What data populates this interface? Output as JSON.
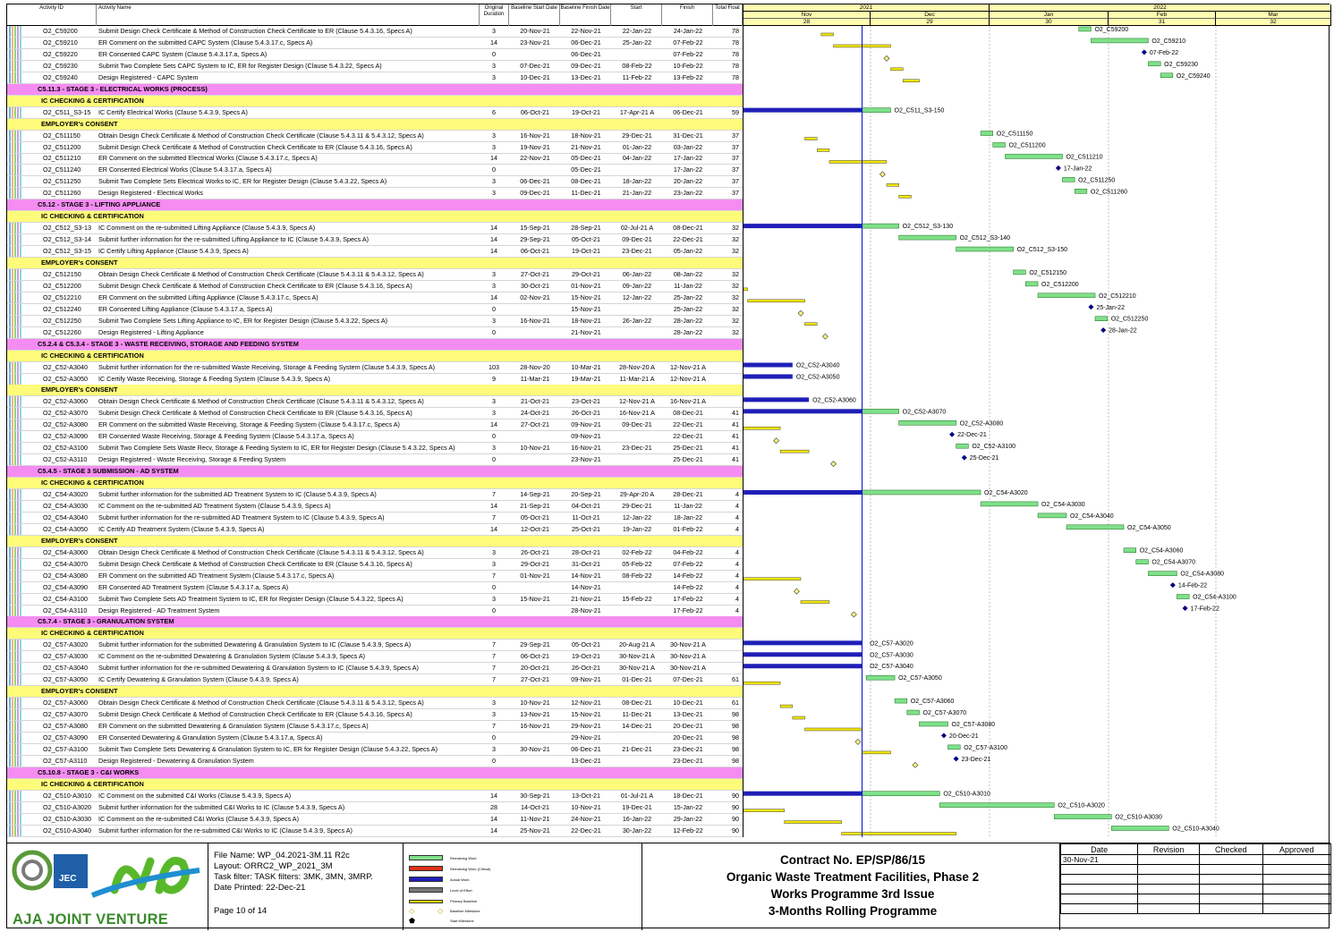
{
  "header": {
    "activity_id": "Activity ID",
    "activity_name": "Activity Name",
    "orig_duration": "Original Duration",
    "baseline_start": "Baseline Start Date",
    "baseline_finish": "Baseline Finish Date",
    "start": "Start",
    "finish": "Finish",
    "total_float": "Total Float"
  },
  "timescale": {
    "years": [
      "2021",
      "2022"
    ],
    "months": [
      "Nov",
      "Dec",
      "Jan",
      "Feb",
      "Mar"
    ],
    "weeks": [
      "28",
      "29",
      "30",
      "31",
      "32"
    ],
    "data_date": "30-Nov-21"
  },
  "rows": [
    {
      "t": "a",
      "id": "O2_C59200",
      "name": "Submit Design Check Certificate & Method of Construction Check Certificate to ER (Clause 5.4.3.16, Specs A)",
      "dur": "3",
      "bs": "20-Nov-21",
      "bf": "22-Nov-21",
      "st": "22-Jan-22",
      "fi": "24-Jan-22",
      "tf": "78",
      "label": "O2_C59200"
    },
    {
      "t": "a",
      "id": "O2_C59210",
      "name": "ER Comment on the submitted CAPC System (Clause 5.4.3.17.c, Specs A)",
      "dur": "14",
      "bs": "23-Nov-21",
      "bf": "06-Dec-21",
      "st": "25-Jan-22",
      "fi": "07-Feb-22",
      "tf": "78",
      "label": "O2_C59210"
    },
    {
      "t": "a",
      "id": "O2_C59220",
      "name": "ER Consented CAPC System (Clause 5.4.3.17.a, Specs A)",
      "dur": "0",
      "bs": "",
      "bf": "06-Dec-21",
      "st": "",
      "fi": "07-Feb-22",
      "tf": "78",
      "label": "07-Feb-22"
    },
    {
      "t": "a",
      "id": "O2_C59230",
      "name": "Submit Two Complete Sets CAPC System to IC, ER for Register Design (Clause 5.4.3.22, Specs A)",
      "dur": "3",
      "bs": "07-Dec-21",
      "bf": "09-Dec-21",
      "st": "08-Feb-22",
      "fi": "10-Feb-22",
      "tf": "78",
      "label": "O2_C59230"
    },
    {
      "t": "a",
      "id": "O2_C59240",
      "name": "Design Registered - CAPC System",
      "dur": "3",
      "bs": "10-Dec-21",
      "bf": "13-Dec-21",
      "st": "11-Feb-22",
      "fi": "13-Feb-22",
      "tf": "78",
      "label": "O2_C59240"
    },
    {
      "t": "s",
      "name": "C5.11.3 - STAGE 3 - ELECTRICAL WORKS (PROCESS)"
    },
    {
      "t": "h",
      "name": "IC CHECKING & CERTIFICATION"
    },
    {
      "t": "a",
      "id": "O2_C511_S3-15",
      "name": "IC Certify Electrical Works (Clause 5.4.3.9, Specs A)",
      "dur": "6",
      "bs": "06-Oct-21",
      "bf": "19-Oct-21",
      "st": "17-Apr-21 A",
      "fi": "06-Dec-21",
      "tf": "59",
      "label": "O2_C511_S3-150"
    },
    {
      "t": "h",
      "name": "EMPLOYER's CONSENT"
    },
    {
      "t": "a",
      "id": "O2_C511150",
      "name": "Obtain Design Check Certificate & Method of Construction Check Certificate (Clause 5.4.3.11 & 5.4.3.12, Specs A)",
      "dur": "3",
      "bs": "16-Nov-21",
      "bf": "18-Nov-21",
      "st": "29-Dec-21",
      "fi": "31-Dec-21",
      "tf": "37",
      "label": "O2_C511150"
    },
    {
      "t": "a",
      "id": "O2_C511200",
      "name": "Submit Design Check Certificate & Method of Construction Check Certificate to ER (Clause 5.4.3.16, Specs A)",
      "dur": "3",
      "bs": "19-Nov-21",
      "bf": "21-Nov-21",
      "st": "01-Jan-22",
      "fi": "03-Jan-22",
      "tf": "37",
      "label": "O2_C511200"
    },
    {
      "t": "a",
      "id": "O2_C511210",
      "name": "ER Comment on the submitted Electrical Works (Clause 5.4.3.17.c, Specs A)",
      "dur": "14",
      "bs": "22-Nov-21",
      "bf": "05-Dec-21",
      "st": "04-Jan-22",
      "fi": "17-Jan-22",
      "tf": "37",
      "label": "O2_C511210"
    },
    {
      "t": "a",
      "id": "O2_C511240",
      "name": "ER Consented Electrical Works (Clause 5.4.3.17.a, Specs A)",
      "dur": "0",
      "bs": "",
      "bf": "05-Dec-21",
      "st": "",
      "fi": "17-Jan-22",
      "tf": "37",
      "label": "17-Jan-22"
    },
    {
      "t": "a",
      "id": "O2_C511250",
      "name": "Submit Two Complete Sets Electrical Works to IC, ER for Register Design (Clause 5.4.3.22, Specs A)",
      "dur": "3",
      "bs": "06-Dec-21",
      "bf": "08-Dec-21",
      "st": "18-Jan-22",
      "fi": "20-Jan-22",
      "tf": "37",
      "label": "O2_C511250"
    },
    {
      "t": "a",
      "id": "O2_C511260",
      "name": "Design Registered - Electrical Works",
      "dur": "3",
      "bs": "09-Dec-21",
      "bf": "11-Dec-21",
      "st": "21-Jan-22",
      "fi": "23-Jan-22",
      "tf": "37",
      "label": "O2_C511260"
    },
    {
      "t": "s",
      "name": "C5.12 - STAGE 3 - LIFTING APPLIANCE"
    },
    {
      "t": "h",
      "name": "IC CHECKING & CERTIFICATION"
    },
    {
      "t": "a",
      "id": "O2_C512_S3-13",
      "name": "IC Comment on the re-submitted Lifting Appliance (Clause 5.4.3.9, Specs A)",
      "dur": "14",
      "bs": "15-Sep-21",
      "bf": "28-Sep-21",
      "st": "02-Jul-21 A",
      "fi": "08-Dec-21",
      "tf": "32",
      "label": "O2_C512_S3-130"
    },
    {
      "t": "a",
      "id": "O2_C512_S3-14",
      "name": "Submit further information for the re-submitted Lifting Appliance to IC (Clause 5.4.3.9, Specs A)",
      "dur": "14",
      "bs": "29-Sep-21",
      "bf": "05-Oct-21",
      "st": "09-Dec-21",
      "fi": "22-Dec-21",
      "tf": "32",
      "label": "O2_C512_S3-140"
    },
    {
      "t": "a",
      "id": "O2_C512_S3-15",
      "name": "IC Certify Lifting Appliance (Clause 5.4.3.9, Specs A)",
      "dur": "14",
      "bs": "06-Oct-21",
      "bf": "19-Oct-21",
      "st": "23-Dec-21",
      "fi": "05-Jan-22",
      "tf": "32",
      "label": "O2_C512_S3-150"
    },
    {
      "t": "h",
      "name": "EMPLOYER's CONSENT"
    },
    {
      "t": "a",
      "id": "O2_C512150",
      "name": "Obtain Design Check Certificate & Method of Construction Check Certificate (Clause 5.4.3.11 & 5.4.3.12, Specs A)",
      "dur": "3",
      "bs": "27-Oct-21",
      "bf": "29-Oct-21",
      "st": "06-Jan-22",
      "fi": "08-Jan-22",
      "tf": "32",
      "label": "O2_C512150"
    },
    {
      "t": "a",
      "id": "O2_C512200",
      "name": "Submit Design Check Certificate & Method of Construction Check Certificate to ER (Clause 5.4.3.16, Specs A)",
      "dur": "3",
      "bs": "30-Oct-21",
      "bf": "01-Nov-21",
      "st": "09-Jan-22",
      "fi": "11-Jan-22",
      "tf": "32",
      "label": "O2_C512200"
    },
    {
      "t": "a",
      "id": "O2_C512210",
      "name": "ER Comment on the submitted Lifting Appliance (Clause 5.4.3.17.c, Specs A)",
      "dur": "14",
      "bs": "02-Nov-21",
      "bf": "15-Nov-21",
      "st": "12-Jan-22",
      "fi": "25-Jan-22",
      "tf": "32",
      "label": "O2_C512210"
    },
    {
      "t": "a",
      "id": "O2_C512240",
      "name": "ER Consented Lifting Appliance (Clause 5.4.3.17.a, Specs A)",
      "dur": "0",
      "bs": "",
      "bf": "15-Nov-21",
      "st": "",
      "fi": "25-Jan-22",
      "tf": "32",
      "label": "25-Jan-22"
    },
    {
      "t": "a",
      "id": "O2_C512250",
      "name": "Submit Two Complete Sets Lifting Appliance to IC, ER for Register Design (Clause 5.4.3.22, Specs A)",
      "dur": "3",
      "bs": "16-Nov-21",
      "bf": "18-Nov-21",
      "st": "26-Jan-22",
      "fi": "28-Jan-22",
      "tf": "32",
      "label": "O2_C512250"
    },
    {
      "t": "a",
      "id": "O2_C512260",
      "name": "Design Registered - Lifting Appliance",
      "dur": "0",
      "bs": "",
      "bf": "21-Nov-21",
      "st": "",
      "fi": "28-Jan-22",
      "tf": "32",
      "label": "28-Jan-22"
    },
    {
      "t": "s",
      "name": "C5.2.4 & C5.3.4 - STAGE 3 - WASTE RECEIVING, STORAGE AND FEEDING SYSTEM"
    },
    {
      "t": "h",
      "name": "IC CHECKING & CERTIFICATION"
    },
    {
      "t": "a",
      "id": "O2_C52-A3040",
      "name": "Submit further information for the re-submitted Waste Receiving, Storage & Feeding System (Clause 5.4.3.9, Specs A)",
      "dur": "103",
      "bs": "28-Nov-20",
      "bf": "10-Mar-21",
      "st": "28-Nov-20 A",
      "fi": "12-Nov-21 A",
      "tf": "",
      "label": "O2_C52-A3040"
    },
    {
      "t": "a",
      "id": "O2_C52-A3050",
      "name": "IC Certify Waste Receiving, Storage & Feeding System (Clause 5.4.3.9, Specs A)",
      "dur": "9",
      "bs": "11-Mar-21",
      "bf": "19-Mar-21",
      "st": "11-Mar-21 A",
      "fi": "12-Nov-21 A",
      "tf": "",
      "label": "O2_C52-A3050"
    },
    {
      "t": "h",
      "name": "EMPLOYER's CONSENT"
    },
    {
      "t": "a",
      "id": "O2_C52-A3060",
      "name": "Obtain Design Check Certificate & Method of Construction Check Certificate (Clause 5.4.3.11 & 5.4.3.12, Specs A)",
      "dur": "3",
      "bs": "21-Oct-21",
      "bf": "23-Oct-21",
      "st": "12-Nov-21 A",
      "fi": "16-Nov-21 A",
      "tf": "",
      "label": "O2_C52-A3060"
    },
    {
      "t": "a",
      "id": "O2_C52-A3070",
      "name": "Submit Design Check Certificate & Method of Construction Check Certificate to ER (Clause 5.4.3.16, Specs A)",
      "dur": "3",
      "bs": "24-Oct-21",
      "bf": "26-Oct-21",
      "st": "16-Nov-21 A",
      "fi": "08-Dec-21",
      "tf": "41",
      "label": "O2_C52-A3070"
    },
    {
      "t": "a",
      "id": "O2_C52-A3080",
      "name": "ER Comment on the submitted Waste Receiving, Storage & Feeding System (Clause 5.4.3.17.c, Specs A)",
      "dur": "14",
      "bs": "27-Oct-21",
      "bf": "09-Nov-21",
      "st": "09-Dec-21",
      "fi": "22-Dec-21",
      "tf": "41",
      "label": "O2_C52-A3080"
    },
    {
      "t": "a",
      "id": "O2_C52-A3090",
      "name": "ER Consented Waste Receiving, Storage & Feeding System (Clause 5.4.3.17.a, Specs A)",
      "dur": "0",
      "bs": "",
      "bf": "09-Nov-21",
      "st": "",
      "fi": "22-Dec-21",
      "tf": "41",
      "label": "22-Dec-21"
    },
    {
      "t": "a",
      "id": "O2_C52-A3100",
      "name": "Submit Two Complete Sets Waste Recv, Storage & Feeding System to IC, ER for Register Design (Clause 5.4.3.22, Specs A)",
      "dur": "3",
      "bs": "10-Nov-21",
      "bf": "16-Nov-21",
      "st": "23-Dec-21",
      "fi": "25-Dec-21",
      "tf": "41",
      "label": "O2_C52-A3100"
    },
    {
      "t": "a",
      "id": "O2_C52-A3110",
      "name": "Design Registered - Waste Receiving, Storage & Feeding System",
      "dur": "0",
      "bs": "",
      "bf": "23-Nov-21",
      "st": "",
      "fi": "25-Dec-21",
      "tf": "41",
      "label": "25-Dec-21"
    },
    {
      "t": "s",
      "name": "C5.4.5 - STAGE 3 SUBMISSION - AD SYSTEM"
    },
    {
      "t": "h",
      "name": "IC CHECKING & CERTIFICATION"
    },
    {
      "t": "a",
      "id": "O2_C54-A3020",
      "name": "Submit further information for the submitted AD Treatment System to IC (Clause 5.4.3.9, Specs A)",
      "dur": "7",
      "bs": "14-Sep-21",
      "bf": "20-Sep-21",
      "st": "29-Apr-20 A",
      "fi": "28-Dec-21",
      "tf": "4",
      "label": "O2_C54-A3020"
    },
    {
      "t": "a",
      "id": "O2_C54-A3030",
      "name": "IC Comment on the re-submitted AD Treatment System (Clause 5.4.3.9, Specs A)",
      "dur": "14",
      "bs": "21-Sep-21",
      "bf": "04-Oct-21",
      "st": "29-Dec-21",
      "fi": "11-Jan-22",
      "tf": "4",
      "label": "O2_C54-A3030"
    },
    {
      "t": "a",
      "id": "O2_C54-A3040",
      "name": "Submit further information for the re-submitted AD Treatment System to IC (Clause 5.4.3.9, Specs A)",
      "dur": "7",
      "bs": "05-Oct-21",
      "bf": "11-Oct-21",
      "st": "12-Jan-22",
      "fi": "18-Jan-22",
      "tf": "4",
      "label": "O2_C54-A3040"
    },
    {
      "t": "a",
      "id": "O2_C54-A3050",
      "name": "IC Certify AD Treatment System (Clause 5.4.3.9, Specs A)",
      "dur": "14",
      "bs": "12-Oct-21",
      "bf": "25-Oct-21",
      "st": "19-Jan-22",
      "fi": "01-Feb-22",
      "tf": "4",
      "label": "O2_C54-A3050"
    },
    {
      "t": "h",
      "name": "EMPLOYER's CONSENT"
    },
    {
      "t": "a",
      "id": "O2_C54-A3060",
      "name": "Obtain Design Check Certificate & Method of Construction Check Certificate (Clause 5.4.3.11 & 5.4.3.12, Specs A)",
      "dur": "3",
      "bs": "26-Oct-21",
      "bf": "28-Oct-21",
      "st": "02-Feb-22",
      "fi": "04-Feb-22",
      "tf": "4",
      "label": "O2_C54-A3060"
    },
    {
      "t": "a",
      "id": "O2_C54-A3070",
      "name": "Submit Design Check Certificate & Method of Construction Check Certificate to ER (Clause 5.4.3.16, Specs A)",
      "dur": "3",
      "bs": "29-Oct-21",
      "bf": "31-Oct-21",
      "st": "05-Feb-22",
      "fi": "07-Feb-22",
      "tf": "4",
      "label": "O2_C54-A3070"
    },
    {
      "t": "a",
      "id": "O2_C54-A3080",
      "name": "ER Comment on the submitted AD Treatment System (Clause 5.4.3.17.c, Specs A)",
      "dur": "7",
      "bs": "01-Nov-21",
      "bf": "14-Nov-21",
      "st": "08-Feb-22",
      "fi": "14-Feb-22",
      "tf": "4",
      "label": "O2_C54-A3080"
    },
    {
      "t": "a",
      "id": "O2_C54-A3090",
      "name": "ER Consented AD Treatment System (Clause 5.4.3.17.a, Specs A)",
      "dur": "0",
      "bs": "",
      "bf": "14-Nov-21",
      "st": "",
      "fi": "14-Feb-22",
      "tf": "4",
      "label": "14-Feb-22"
    },
    {
      "t": "a",
      "id": "O2_C54-A3100",
      "name": "Submit Two Complete Sets AD Treatment System to IC, ER for Register Design (Clause 5.4.3.22, Specs A)",
      "dur": "3",
      "bs": "15-Nov-21",
      "bf": "21-Nov-21",
      "st": "15-Feb-22",
      "fi": "17-Feb-22",
      "tf": "4",
      "label": "O2_C54-A3100"
    },
    {
      "t": "a",
      "id": "O2_C54-A3110",
      "name": "Design Registered - AD Treatment System",
      "dur": "0",
      "bs": "",
      "bf": "28-Nov-21",
      "st": "",
      "fi": "17-Feb-22",
      "tf": "4",
      "label": "17-Feb-22"
    },
    {
      "t": "s",
      "name": "C5.7.4 - STAGE 3 - GRANULATION SYSTEM"
    },
    {
      "t": "h",
      "name": "IC CHECKING & CERTIFICATION"
    },
    {
      "t": "a",
      "id": "O2_C57-A3020",
      "name": "Submit further information for the submitted Dewatering & Granulation System to IC (Clause 5.4.3.9, Specs A)",
      "dur": "7",
      "bs": "29-Sep-21",
      "bf": "05-Oct-21",
      "st": "20-Aug-21 A",
      "fi": "30-Nov-21 A",
      "tf": "",
      "label": "O2_C57-A3020"
    },
    {
      "t": "a",
      "id": "O2_C57-A3030",
      "name": "IC Comment on the re-submitted Dewatering & Granulation System (Clause 5.4.3.9, Specs A)",
      "dur": "7",
      "bs": "06-Oct-21",
      "bf": "19-Oct-21",
      "st": "30-Nov-21 A",
      "fi": "30-Nov-21 A",
      "tf": "",
      "label": "O2_C57-A3030"
    },
    {
      "t": "a",
      "id": "O2_C57-A3040",
      "name": "Submit further information for the re-submitted Dewatering & Granulation System to IC (Clause 5.4.3.9, Specs A)",
      "dur": "7",
      "bs": "20-Oct-21",
      "bf": "26-Oct-21",
      "st": "30-Nov-21 A",
      "fi": "30-Nov-21 A",
      "tf": "",
      "label": "O2_C57-A3040"
    },
    {
      "t": "a",
      "id": "O2_C57-A3050",
      "name": "IC Certify Dewatering & Granulation System (Clause 5.4.3.9, Specs A)",
      "dur": "7",
      "bs": "27-Oct-21",
      "bf": "09-Nov-21",
      "st": "01-Dec-21",
      "fi": "07-Dec-21",
      "tf": "61",
      "label": "O2_C57-A3050"
    },
    {
      "t": "h",
      "name": "EMPLOYER's CONSENT"
    },
    {
      "t": "a",
      "id": "O2_C57-A3060",
      "name": "Obtain Design Check Certificate & Method of Construction Check Certificate (Clause 5.4.3.11 & 5.4.3.12, Specs A)",
      "dur": "3",
      "bs": "10-Nov-21",
      "bf": "12-Nov-21",
      "st": "08-Dec-21",
      "fi": "10-Dec-21",
      "tf": "61",
      "label": "O2_C57-A3060"
    },
    {
      "t": "a",
      "id": "O2_C57-A3070",
      "name": "Submit Design Check Certificate & Method of Construction Check Certificate to ER (Clause 5.4.3.16, Specs A)",
      "dur": "3",
      "bs": "13-Nov-21",
      "bf": "15-Nov-21",
      "st": "11-Dec-21",
      "fi": "13-Dec-21",
      "tf": "98",
      "label": "O2_C57-A3070"
    },
    {
      "t": "a",
      "id": "O2_C57-A3080",
      "name": "ER Comment on the submitted Dewatering & Granulation System (Clause 5.4.3.17.c, Specs A)",
      "dur": "7",
      "bs": "16-Nov-21",
      "bf": "29-Nov-21",
      "st": "14-Dec-21",
      "fi": "20-Dec-21",
      "tf": "98",
      "label": "O2_C57-A3080"
    },
    {
      "t": "a",
      "id": "O2_C57-A3090",
      "name": "ER Consented Dewatering & Granulation System (Clause 5.4.3.17.a, Specs A)",
      "dur": "0",
      "bs": "",
      "bf": "29-Nov-21",
      "st": "",
      "fi": "20-Dec-21",
      "tf": "98",
      "label": "20-Dec-21"
    },
    {
      "t": "a",
      "id": "O2_C57-A3100",
      "name": "Submit Two Complete Sets Dewatering & Granulation System to IC, ER for Register Design (Clause 5.4.3.22, Specs A)",
      "dur": "3",
      "bs": "30-Nov-21",
      "bf": "06-Dec-21",
      "st": "21-Dec-21",
      "fi": "23-Dec-21",
      "tf": "98",
      "label": "O2_C57-A3100"
    },
    {
      "t": "a",
      "id": "O2_C57-A3110",
      "name": "Design Registered - Dewatering & Granulation System",
      "dur": "0",
      "bs": "",
      "bf": "13-Dec-21",
      "st": "",
      "fi": "23-Dec-21",
      "tf": "98",
      "label": "23-Dec-21"
    },
    {
      "t": "s",
      "name": "C5.10.8 - STAGE 3 - C&I WORKS"
    },
    {
      "t": "h",
      "name": "IC CHECKING & CERTIFICATION"
    },
    {
      "t": "a",
      "id": "O2_C510-A3010",
      "name": "IC Comment on the submitted C&I Works (Clause 5.4.3.9, Specs A)",
      "dur": "14",
      "bs": "30-Sep-21",
      "bf": "13-Oct-21",
      "st": "01-Jul-21 A",
      "fi": "18-Dec-21",
      "tf": "90",
      "label": "O2_C510-A3010"
    },
    {
      "t": "a",
      "id": "O2_C510-A3020",
      "name": "Submit further information for the submitted C&I Works to IC (Clause 5.4.3.9, Specs A)",
      "dur": "28",
      "bs": "14-Oct-21",
      "bf": "10-Nov-21",
      "st": "19-Dec-21",
      "fi": "15-Jan-22",
      "tf": "90",
      "label": "O2_C510-A3020"
    },
    {
      "t": "a",
      "id": "O2_C510-A3030",
      "name": "IC Comment on the re-submitted C&I Works (Clause 5.4.3.9, Specs A)",
      "dur": "14",
      "bs": "11-Nov-21",
      "bf": "24-Nov-21",
      "st": "16-Jan-22",
      "fi": "29-Jan-22",
      "tf": "90",
      "label": "O2_C510-A3030"
    },
    {
      "t": "a",
      "id": "O2_C510-A3040",
      "name": "Submit further information for the re-submitted C&I Works to IC (Clause 5.4.3.9, Specs A)",
      "dur": "14",
      "bs": "25-Nov-21",
      "bf": "22-Dec-21",
      "st": "30-Jan-22",
      "fi": "12-Feb-22",
      "tf": "90",
      "label": "O2_C510-A3040"
    }
  ],
  "footer": {
    "logo_text": "AJA JOINT VENTURE",
    "logo_small": "JEC",
    "file_name": "File Name: WP_04.2021-3M.11 R2c",
    "layout": "Layout: ORRC2_WP_2021_3M",
    "task_filter": "Task filter: TASK filters: 3MK, 3MN, 3MRP.",
    "date_printed": "Date Printed: 22-Dec-21",
    "page": "Page 10 of 14",
    "legend": [
      "Remaining Work",
      "Remaining Work (Critical)",
      "Actual Work",
      "Level of Effort",
      "Primary Baseline",
      "Baseline Milestone",
      "Start Milestone"
    ],
    "title1": "Contract No. EP/SP/86/15",
    "title2": "Organic Waste Treatment Facilities, Phase 2",
    "title3": "Works Programme 3rd Issue",
    "title4": "3-Months Rolling Programme",
    "approval_headers": [
      "Date",
      "Revision",
      "Checked",
      "Approved"
    ],
    "approval_date": "30-Nov-21"
  },
  "colors": {
    "section": "#f58cf2",
    "subsection": "#fffb7a",
    "remaining": "#7fe08a",
    "actual": "#1f1fb8",
    "baseline": "#f2e600",
    "critical": "#e0301a",
    "milestone": "#000080"
  }
}
